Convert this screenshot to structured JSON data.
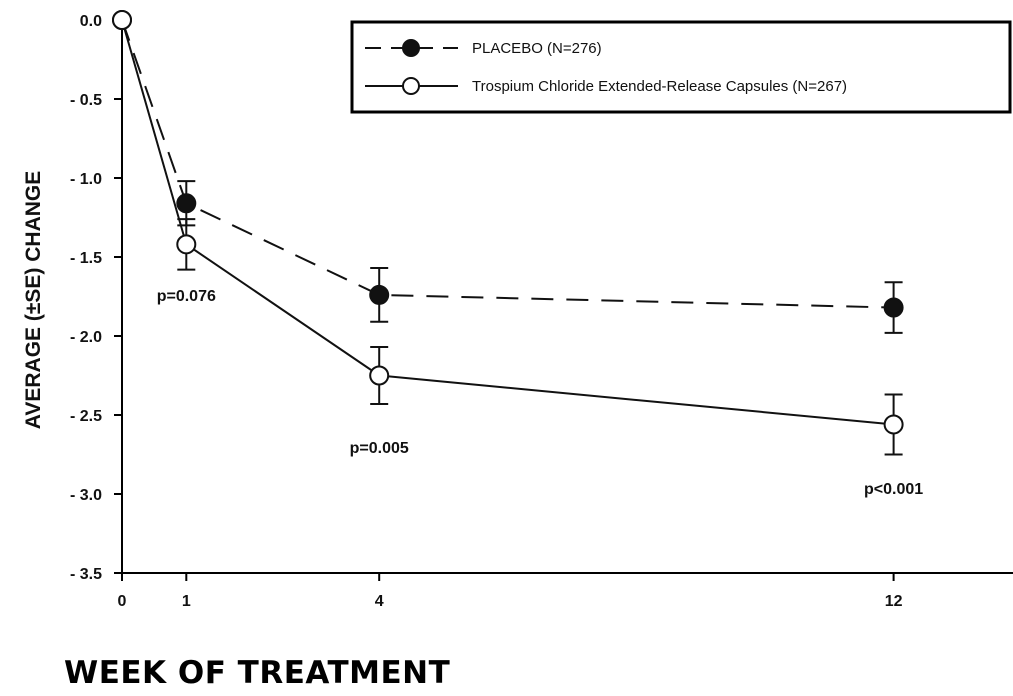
{
  "chart_data": {
    "type": "line",
    "xlabel": "WEEK OF TREATMENT",
    "ylabel": "AVERAGE (±SE) CHANGE",
    "xlim": [
      0,
      15
    ],
    "ylim": [
      -3.5,
      0.0
    ],
    "x_ticks": [
      0,
      1,
      4,
      12
    ],
    "x_tick_labels": [
      "0",
      "1",
      "4",
      "12"
    ],
    "y_ticks": [
      0.0,
      -0.5,
      -1.0,
      -1.5,
      -2.0,
      -2.5,
      -3.0,
      -3.5
    ],
    "y_tick_labels": [
      "0.0",
      "- 0.5",
      "- 1.0",
      "- 1.5",
      "- 2.0",
      "- 2.5",
      "- 3.0",
      "- 3.5"
    ],
    "grid": false,
    "legend_position": "top-right",
    "series": [
      {
        "name": "PLACEBO (N=276)",
        "line_style": "dashed",
        "marker": "filled-circle",
        "x": [
          0,
          1,
          4,
          12
        ],
        "y": [
          0.0,
          -1.16,
          -1.74,
          -1.82
        ],
        "se": [
          0,
          0.14,
          0.17,
          0.16
        ]
      },
      {
        "name": "Trospium Chloride Extended-Release Capsules (N=267)",
        "line_style": "solid",
        "marker": "open-circle",
        "x": [
          0,
          1,
          4,
          12
        ],
        "y": [
          0.0,
          -1.42,
          -2.25,
          -2.56
        ],
        "se": [
          0,
          0.16,
          0.18,
          0.19
        ]
      }
    ],
    "annotations": [
      {
        "text": "p=0.076",
        "x": 1,
        "y": -1.78
      },
      {
        "text": "p=0.005",
        "x": 4,
        "y": -2.74
      },
      {
        "text": "p<0.001",
        "x": 12,
        "y": -3.0
      }
    ],
    "colors": {
      "axis": "#000000",
      "series": "#111111",
      "background": "#ffffff"
    }
  }
}
